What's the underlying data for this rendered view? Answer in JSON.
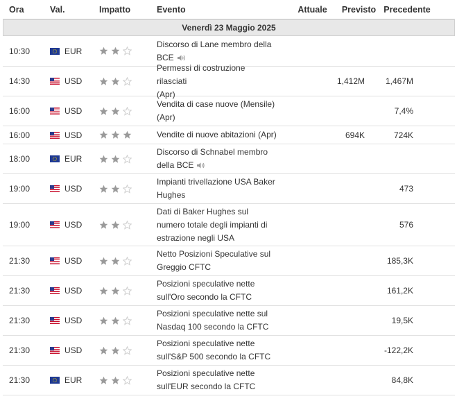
{
  "header": {
    "ora": "Ora",
    "val": "Val.",
    "impatto": "Impatto",
    "evento": "Evento",
    "attuale": "Attuale",
    "previsto": "Previsto",
    "precedente": "Precedente"
  },
  "day_label": "Venerdì 23 Maggio 2025",
  "colors": {
    "star_filled": "#9a9a9a",
    "star_empty": "#cfcfcf",
    "day_bg": "#e8e8e8"
  },
  "rows": [
    {
      "time": "10:30",
      "currency": "EUR",
      "flag": "eu-flag-icon",
      "stars": 2,
      "event_lines": [
        "Discorso di Lane membro della",
        "BCE"
      ],
      "speaker": true,
      "actual": "",
      "forecast": "",
      "previous": ""
    },
    {
      "time": "14:30",
      "currency": "USD",
      "flag": "us-flag-icon",
      "stars": 2,
      "event_lines": [
        "Permessi di costruzione rilasciati",
        "(Apr)"
      ],
      "speaker": false,
      "actual": "",
      "forecast": "1,412M",
      "previous": "1,467M"
    },
    {
      "time": "16:00",
      "currency": "USD",
      "flag": "us-flag-icon",
      "stars": 2,
      "event_lines": [
        "Vendita di case nuove (Mensile)",
        "(Apr)"
      ],
      "speaker": false,
      "actual": "",
      "forecast": "",
      "previous": "7,4%"
    },
    {
      "time": "16:00",
      "currency": "USD",
      "flag": "us-flag-icon",
      "stars": 3,
      "event_lines": [
        "Vendite di nuove abitazioni (Apr)"
      ],
      "speaker": false,
      "actual": "",
      "forecast": "694K",
      "previous": "724K"
    },
    {
      "time": "18:00",
      "currency": "EUR",
      "flag": "eu-flag-icon",
      "stars": 2,
      "event_lines": [
        "Discorso di Schnabel membro",
        "della BCE"
      ],
      "speaker": true,
      "actual": "",
      "forecast": "",
      "previous": ""
    },
    {
      "time": "19:00",
      "currency": "USD",
      "flag": "us-flag-icon",
      "stars": 2,
      "event_lines": [
        "Impianti trivellazione USA Baker",
        "Hughes"
      ],
      "speaker": false,
      "actual": "",
      "forecast": "",
      "previous": "473"
    },
    {
      "time": "19:00",
      "currency": "USD",
      "flag": "us-flag-icon",
      "stars": 2,
      "event_lines": [
        "Dati di Baker Hughes sul",
        "numero totale degli impianti di",
        "estrazione negli USA"
      ],
      "speaker": false,
      "actual": "",
      "forecast": "",
      "previous": "576"
    },
    {
      "time": "21:30",
      "currency": "USD",
      "flag": "us-flag-icon",
      "stars": 2,
      "event_lines": [
        "Netto Posizioni Speculative sul",
        "Greggio CFTC"
      ],
      "speaker": false,
      "actual": "",
      "forecast": "",
      "previous": "185,3K"
    },
    {
      "time": "21:30",
      "currency": "USD",
      "flag": "us-flag-icon",
      "stars": 2,
      "event_lines": [
        "Posizioni speculative nette",
        "sull'Oro secondo la CFTC"
      ],
      "speaker": false,
      "actual": "",
      "forecast": "",
      "previous": "161,2K"
    },
    {
      "time": "21:30",
      "currency": "USD",
      "flag": "us-flag-icon",
      "stars": 2,
      "event_lines": [
        "Posizioni speculative nette sul",
        "Nasdaq 100 secondo la CFTC"
      ],
      "speaker": false,
      "actual": "",
      "forecast": "",
      "previous": "19,5K"
    },
    {
      "time": "21:30",
      "currency": "USD",
      "flag": "us-flag-icon",
      "stars": 2,
      "event_lines": [
        "Posizioni speculative nette",
        "sull'S&P 500 secondo la CFTC"
      ],
      "speaker": false,
      "actual": "",
      "forecast": "",
      "previous": "-122,2K"
    },
    {
      "time": "21:30",
      "currency": "EUR",
      "flag": "eu-flag-icon",
      "stars": 2,
      "event_lines": [
        "Posizioni speculative nette",
        "sull'EUR secondo la CFTC"
      ],
      "speaker": false,
      "actual": "",
      "forecast": "",
      "previous": "84,8K"
    }
  ]
}
